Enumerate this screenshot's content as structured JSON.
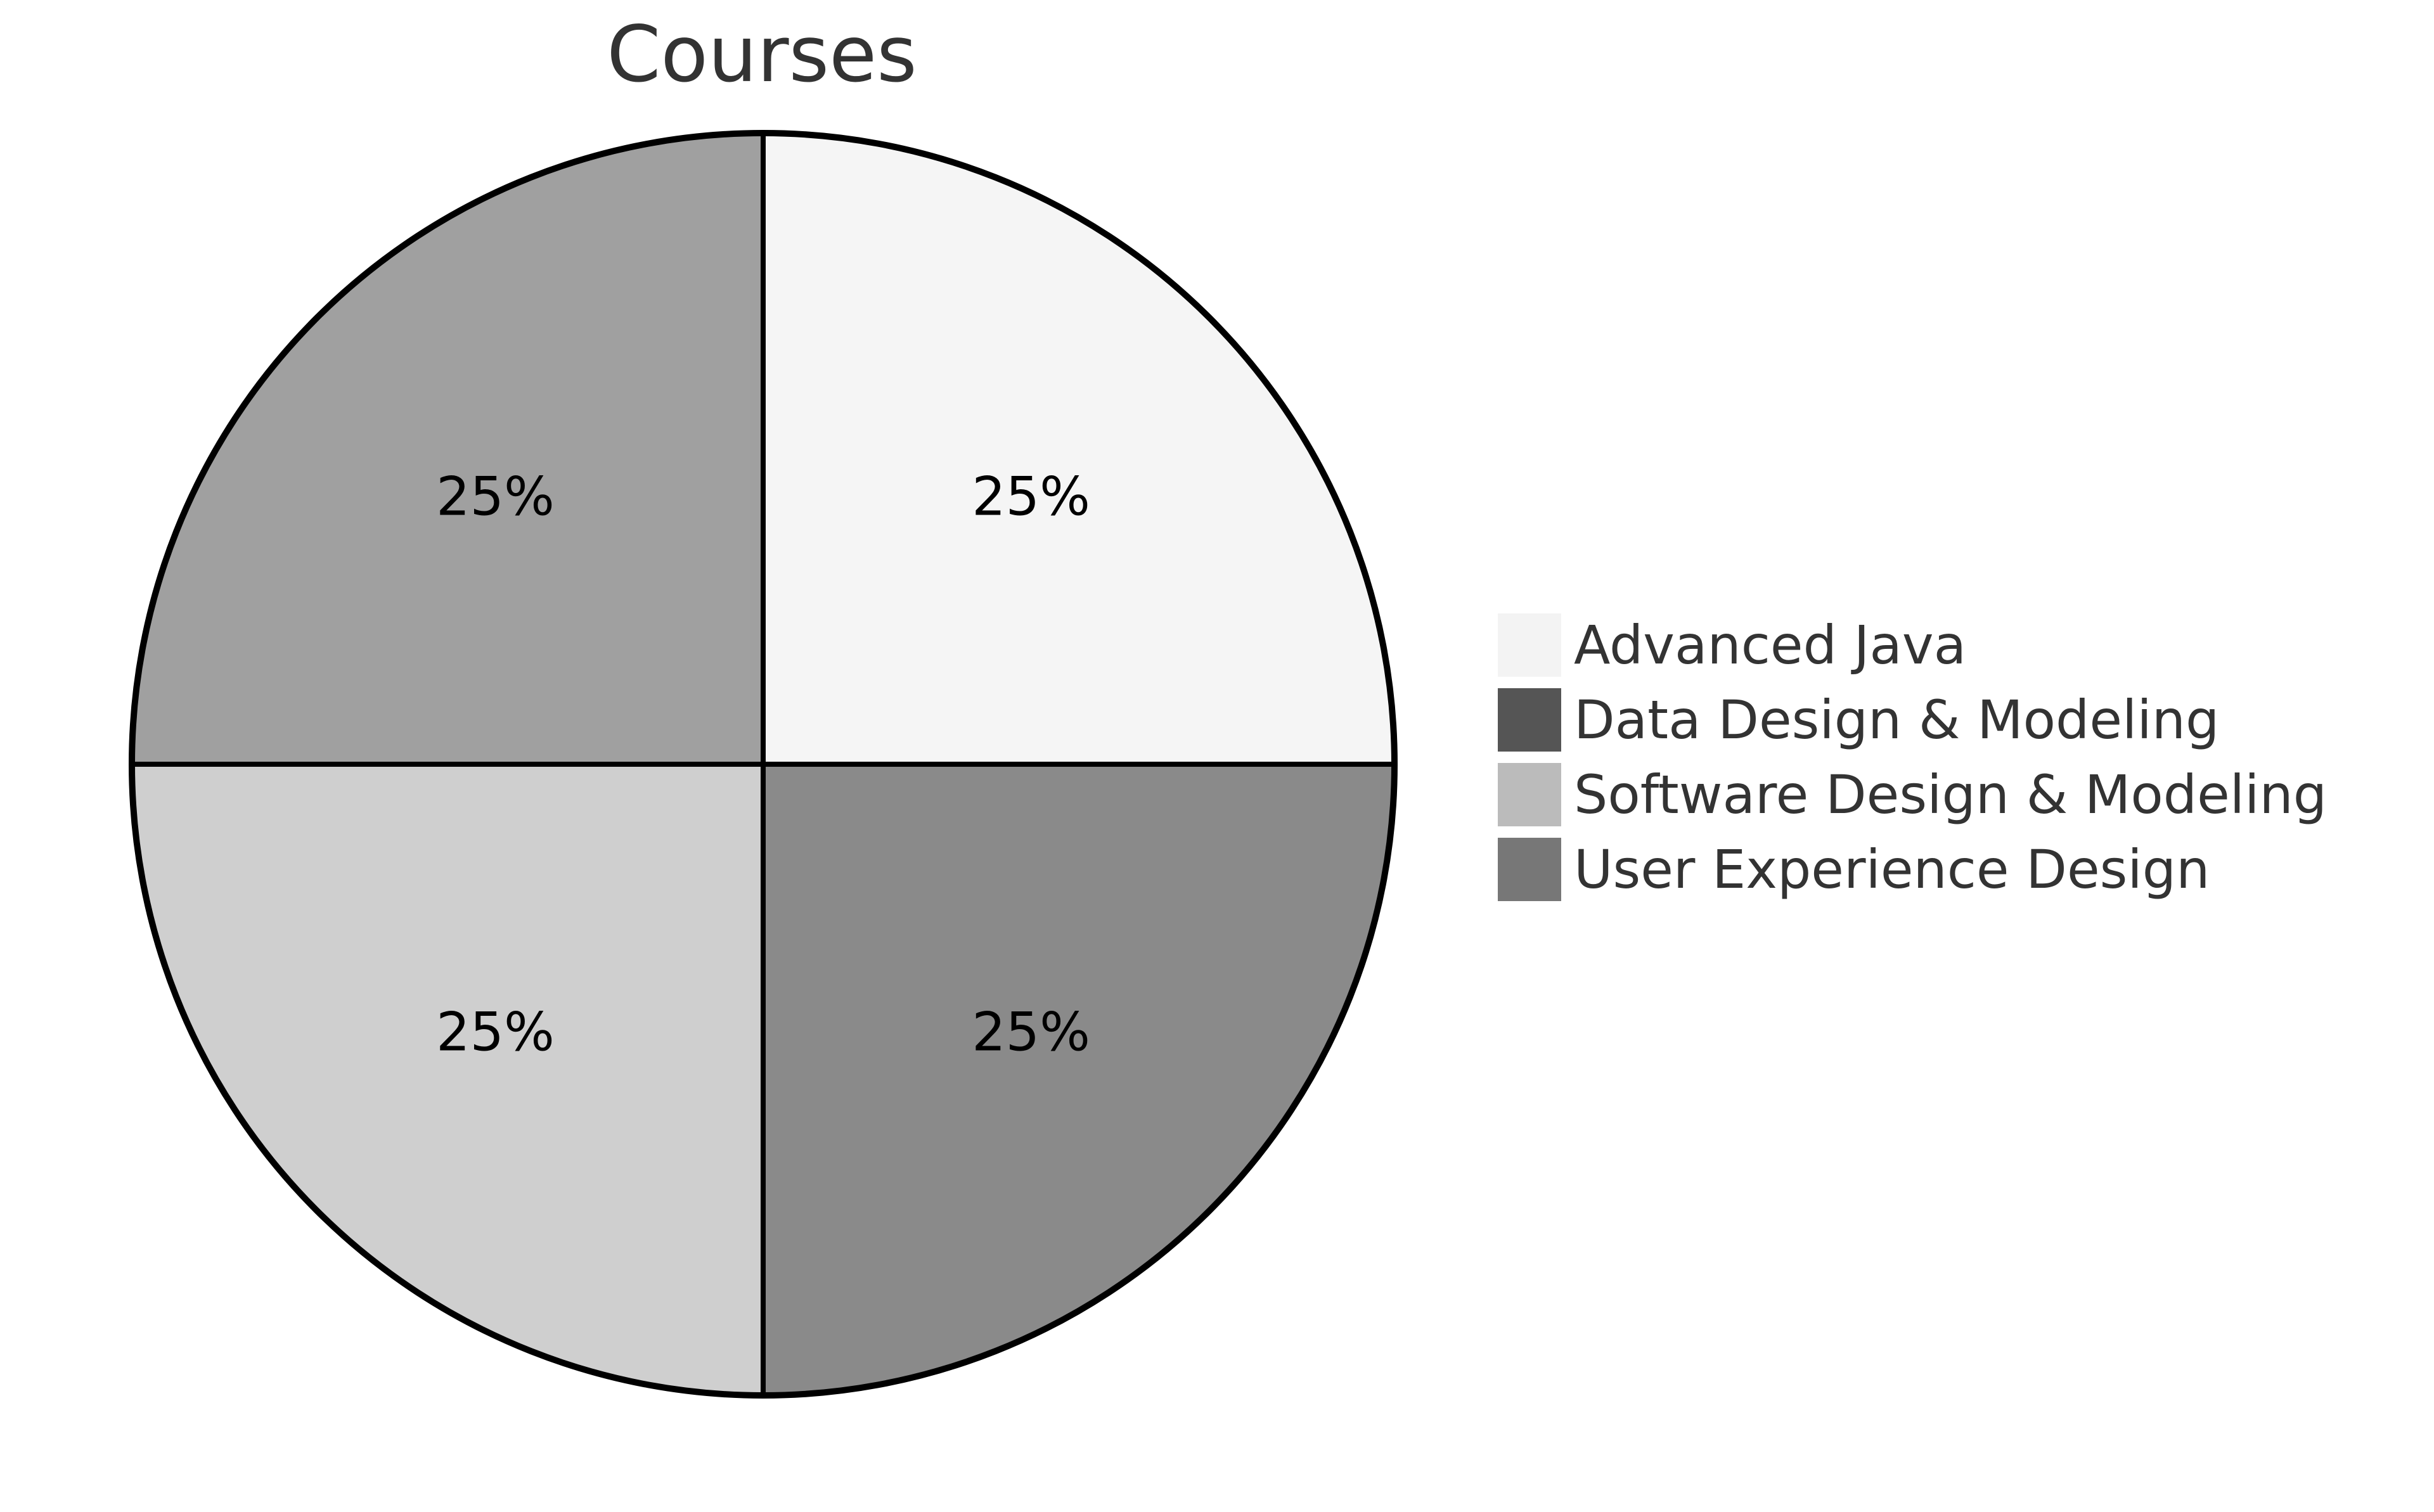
{
  "chart_data": {
    "type": "pie",
    "title": "Courses",
    "slices": [
      {
        "label": "Advanced Java",
        "value": 25,
        "display": "25%",
        "color": "#f5f5f5"
      },
      {
        "label": "User Experience Design",
        "value": 25,
        "display": "25%",
        "color": "#8a8a8a"
      },
      {
        "label": "Software Design & Modeling",
        "value": 25,
        "display": "25%",
        "color": "#cfcfcf"
      },
      {
        "label": "Data Design & Modeling",
        "value": 25,
        "display": "25%",
        "color": "#a0a0a0"
      }
    ],
    "legend": {
      "placement": "right",
      "entries": [
        {
          "label": "Advanced Java",
          "color": "#f3f3f3"
        },
        {
          "label": "Data Design & Modeling",
          "color": "#555555"
        },
        {
          "label": "Software Design & Modeling",
          "color": "#bbbbbb"
        },
        {
          "label": "User Experience Design",
          "color": "#777777"
        }
      ]
    }
  }
}
